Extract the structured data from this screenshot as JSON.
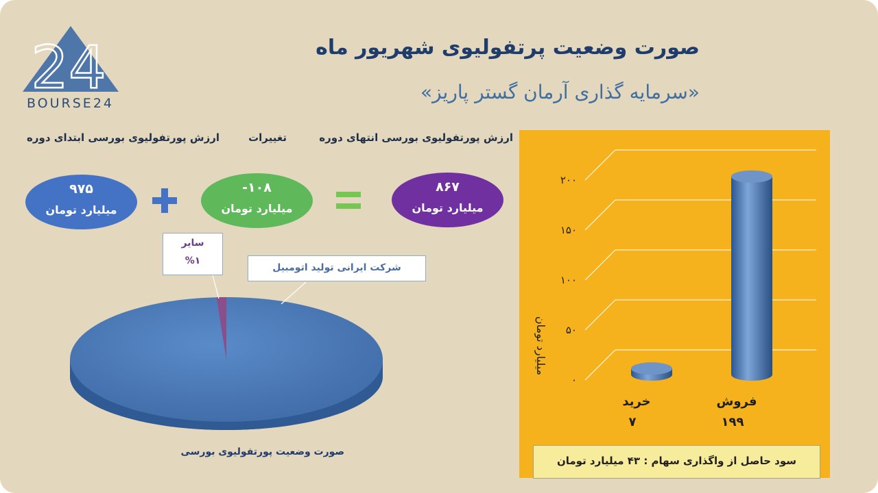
{
  "logo": {
    "text": "BOURSE24",
    "glyph": "24"
  },
  "header": {
    "title": "صورت وضعیت پرتفولیوی شهریور ماه",
    "subtitle": "«سرمایه گذاری آرمان گستر پاریز»"
  },
  "summary": {
    "start": {
      "label": "ارزش پورتفولیوی بورسی ابتدای دوره",
      "value": "۹۷۵",
      "unit": "میلیارد تومان",
      "color": "#4472c4"
    },
    "change": {
      "label": "تغییرات",
      "value": "-۱۰۸",
      "unit": "میلیارد تومان",
      "color": "#5fb85a"
    },
    "end": {
      "label": "ارزش پورتفولیوی بورسی انتهای دوره",
      "value": "۸۶۷",
      "unit": "میلیارد تومان",
      "color": "#7030a0"
    },
    "plus_color": "#4472c4",
    "equals_color": "#77c553"
  },
  "pie": {
    "caption": "صورت وضعیت پورتفولیوی بورسی",
    "other": {
      "name": "سایر",
      "percent": "%۱"
    },
    "main": {
      "name": "شرکت ایرانی تولید اتومبیل"
    }
  },
  "bar_panel": {
    "ylabel": "میلیارد تومان",
    "yticks": [
      "۰",
      "۵۰",
      "۱۰۰",
      "۱۵۰",
      "۲۰۰"
    ],
    "categories": [
      "خرید",
      "فروش"
    ],
    "value_labels": [
      "۷",
      "۱۹۹"
    ],
    "background": "#f6b21c",
    "note": "سود حاصل از واگذاری سهام :  ۴۳  میلیارد تومان"
  },
  "chart_data": [
    {
      "type": "pie",
      "title": "صورت وضعیت پورتفولیوی بورسی",
      "labels": [
        "شرکت ایرانی تولید اتومبیل",
        "سایر"
      ],
      "values": [
        99,
        1
      ],
      "colors": [
        "#4a7ab7",
        "#8a4e8a"
      ]
    },
    {
      "type": "bar",
      "categories": [
        "خرید",
        "فروش"
      ],
      "values": [
        7,
        199
      ],
      "ylabel": "میلیارد تومان",
      "ylim": [
        0,
        200
      ],
      "yticks": [
        0,
        50,
        100,
        150,
        200
      ],
      "grid": true,
      "colors": [
        "#4a7ab7"
      ]
    }
  ]
}
